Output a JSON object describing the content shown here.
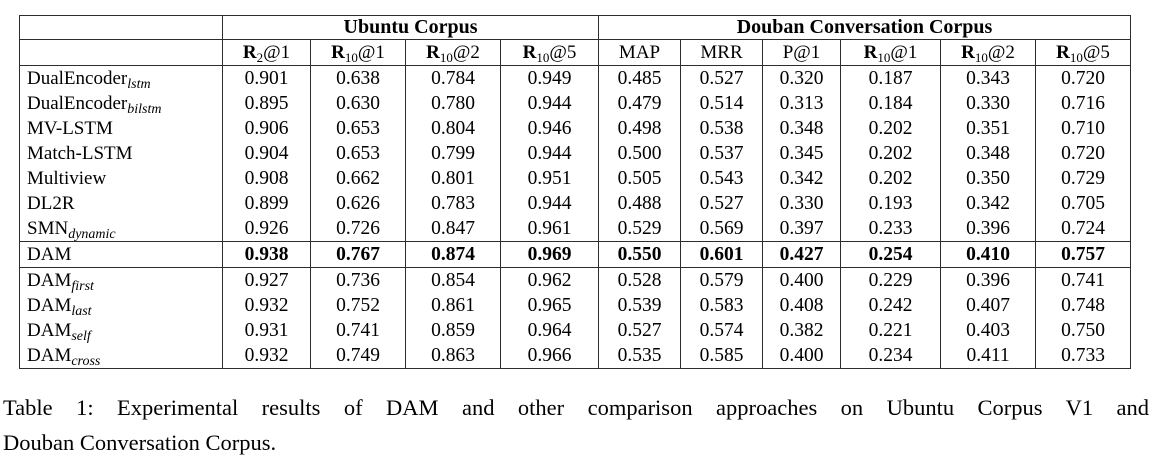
{
  "table": {
    "col_groups": [
      {
        "label": "Ubuntu Corpus",
        "span": 4
      },
      {
        "label": "Douban Conversation Corpus",
        "span": 6
      }
    ],
    "metrics": [
      {
        "main": "R",
        "sub": "2",
        "tail": "@1",
        "bold_main": true
      },
      {
        "main": "R",
        "sub": "10",
        "tail": "@1",
        "bold_main": true
      },
      {
        "main": "R",
        "sub": "10",
        "tail": "@2",
        "bold_main": true
      },
      {
        "main": "R",
        "sub": "10",
        "tail": "@5",
        "bold_main": true
      },
      {
        "main": "MAP",
        "sub": "",
        "tail": "",
        "bold_main": false
      },
      {
        "main": "MRR",
        "sub": "",
        "tail": "",
        "bold_main": false
      },
      {
        "main": "P@1",
        "sub": "",
        "tail": "",
        "bold_main": false
      },
      {
        "main": "R",
        "sub": "10",
        "tail": "@1",
        "bold_main": true
      },
      {
        "main": "R",
        "sub": "10",
        "tail": "@2",
        "bold_main": true
      },
      {
        "main": "R",
        "sub": "10",
        "tail": "@5",
        "bold_main": true
      }
    ],
    "rows": [
      {
        "model": {
          "main": "DualEncoder",
          "sub": "lstm"
        },
        "values": [
          "0.901",
          "0.638",
          "0.784",
          "0.949",
          "0.485",
          "0.527",
          "0.320",
          "0.187",
          "0.343",
          "0.720"
        ],
        "bold": false,
        "rule_above": false
      },
      {
        "model": {
          "main": "DualEncoder",
          "sub": "bilstm"
        },
        "values": [
          "0.895",
          "0.630",
          "0.780",
          "0.944",
          "0.479",
          "0.514",
          "0.313",
          "0.184",
          "0.330",
          "0.716"
        ],
        "bold": false,
        "rule_above": false
      },
      {
        "model": {
          "main": "MV-LSTM",
          "sub": ""
        },
        "values": [
          "0.906",
          "0.653",
          "0.804",
          "0.946",
          "0.498",
          "0.538",
          "0.348",
          "0.202",
          "0.351",
          "0.710"
        ],
        "bold": false,
        "rule_above": false
      },
      {
        "model": {
          "main": "Match-LSTM",
          "sub": ""
        },
        "values": [
          "0.904",
          "0.653",
          "0.799",
          "0.944",
          "0.500",
          "0.537",
          "0.345",
          "0.202",
          "0.348",
          "0.720"
        ],
        "bold": false,
        "rule_above": false
      },
      {
        "model": {
          "main": "Multiview",
          "sub": ""
        },
        "values": [
          "0.908",
          "0.662",
          "0.801",
          "0.951",
          "0.505",
          "0.543",
          "0.342",
          "0.202",
          "0.350",
          "0.729"
        ],
        "bold": false,
        "rule_above": false
      },
      {
        "model": {
          "main": "DL2R",
          "sub": ""
        },
        "values": [
          "0.899",
          "0.626",
          "0.783",
          "0.944",
          "0.488",
          "0.527",
          "0.330",
          "0.193",
          "0.342",
          "0.705"
        ],
        "bold": false,
        "rule_above": false
      },
      {
        "model": {
          "main": "SMN",
          "sub": "dynamic"
        },
        "values": [
          "0.926",
          "0.726",
          "0.847",
          "0.961",
          "0.529",
          "0.569",
          "0.397",
          "0.233",
          "0.396",
          "0.724"
        ],
        "bold": false,
        "rule_above": false
      },
      {
        "model": {
          "main": "DAM",
          "sub": ""
        },
        "values": [
          "0.938",
          "0.767",
          "0.874",
          "0.969",
          "0.550",
          "0.601",
          "0.427",
          "0.254",
          "0.410",
          "0.757"
        ],
        "bold": true,
        "rule_above": true
      },
      {
        "model": {
          "main": "DAM",
          "sub": "first"
        },
        "values": [
          "0.927",
          "0.736",
          "0.854",
          "0.962",
          "0.528",
          "0.579",
          "0.400",
          "0.229",
          "0.396",
          "0.741"
        ],
        "bold": false,
        "rule_above": true
      },
      {
        "model": {
          "main": "DAM",
          "sub": "last"
        },
        "values": [
          "0.932",
          "0.752",
          "0.861",
          "0.965",
          "0.539",
          "0.583",
          "0.408",
          "0.242",
          "0.407",
          "0.748"
        ],
        "bold": false,
        "rule_above": false
      },
      {
        "model": {
          "main": "DAM",
          "sub": "self"
        },
        "values": [
          "0.931",
          "0.741",
          "0.859",
          "0.964",
          "0.527",
          "0.574",
          "0.382",
          "0.221",
          "0.403",
          "0.750"
        ],
        "bold": false,
        "rule_above": false
      },
      {
        "model": {
          "main": "DAM",
          "sub": "cross"
        },
        "values": [
          "0.932",
          "0.749",
          "0.863",
          "0.966",
          "0.535",
          "0.585",
          "0.400",
          "0.234",
          "0.411",
          "0.733"
        ],
        "bold": false,
        "rule_above": false
      }
    ]
  },
  "caption": {
    "line1": "Table 1:  Experimental results of DAM and other comparison approaches on Ubuntu Corpus V1 and",
    "line2": "Douban Conversation Corpus.",
    "full": "Table 1: Experimental results of DAM and other comparison approaches on Ubuntu Corpus V1 and Douban Conversation Corpus."
  }
}
